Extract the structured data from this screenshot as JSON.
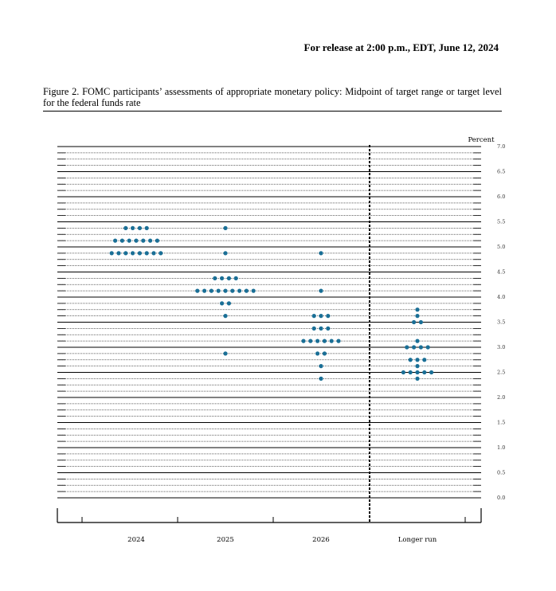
{
  "header": {
    "release": "For release at 2:00 p.m., EDT, June 12, 2024"
  },
  "figure": {
    "title": "Figure 2.  FOMC participants’ assessments of appropriate monetary policy: Midpoint of target range or target level for the federal funds rate"
  },
  "chart_data": {
    "type": "scatter",
    "subtype": "dot plot",
    "title": "Figure 2.  FOMC participants’ assessments of appropriate monetary policy: Midpoint of target range or target level for the federal funds rate",
    "ylabel": "Percent",
    "ylim": [
      0.0,
      7.0
    ],
    "y_ticks": [
      "0.0",
      "0.5",
      "1.0",
      "1.5",
      "2.0",
      "2.5",
      "3.0",
      "3.5",
      "4.0",
      "4.5",
      "5.0",
      "5.5",
      "6.0",
      "6.5",
      "7.0"
    ],
    "categories": [
      "2024",
      "2025",
      "2026",
      "Longer run"
    ],
    "dot_color": "#1a6f96",
    "grid": "solid at 0.5 intervals, dotted at 0.125 intervals",
    "separator": "dashed line before Longer run",
    "dots": [
      {
        "x": "2024",
        "counts": [
          {
            "y": 4.875,
            "n": 8
          },
          {
            "y": 5.125,
            "n": 7
          },
          {
            "y": 5.375,
            "n": 4
          }
        ]
      },
      {
        "x": "2025",
        "counts": [
          {
            "y": 2.875,
            "n": 1
          },
          {
            "y": 3.625,
            "n": 1
          },
          {
            "y": 3.875,
            "n": 2
          },
          {
            "y": 4.125,
            "n": 9
          },
          {
            "y": 4.375,
            "n": 4
          },
          {
            "y": 4.875,
            "n": 1
          },
          {
            "y": 5.375,
            "n": 1
          }
        ]
      },
      {
        "x": "2026",
        "counts": [
          {
            "y": 2.375,
            "n": 1
          },
          {
            "y": 2.625,
            "n": 1
          },
          {
            "y": 2.875,
            "n": 2
          },
          {
            "y": 3.125,
            "n": 6
          },
          {
            "y": 3.375,
            "n": 3
          },
          {
            "y": 3.625,
            "n": 3
          },
          {
            "y": 4.125,
            "n": 1
          },
          {
            "y": 4.875,
            "n": 1
          }
        ]
      },
      {
        "x": "Longer run",
        "counts": [
          {
            "y": 2.375,
            "n": 1
          },
          {
            "y": 2.5,
            "n": 5
          },
          {
            "y": 2.625,
            "n": 1
          },
          {
            "y": 2.75,
            "n": 3
          },
          {
            "y": 3.0,
            "n": 4
          },
          {
            "y": 3.125,
            "n": 1
          },
          {
            "y": 3.5,
            "n": 2
          },
          {
            "y": 3.625,
            "n": 1
          },
          {
            "y": 3.75,
            "n": 1
          }
        ]
      }
    ]
  }
}
